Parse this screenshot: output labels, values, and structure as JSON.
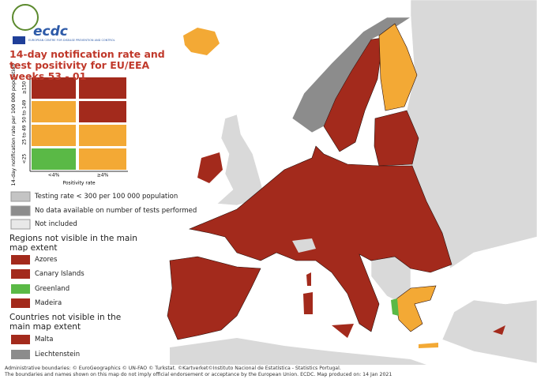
{
  "logo": {
    "name": "ecdc",
    "subtitle": "EUROPEAN CENTRE FOR DISEASE PREVENTION AND CONTROL"
  },
  "title": "14-day notification rate and test positivity for EU/EEA weeks 53 - 01",
  "matrix": {
    "y_label": "14-day notification rate per 100 000 population",
    "row_labels": [
      "≥150",
      "50 to 149",
      "25 to 49",
      "<25"
    ],
    "col_labels": [
      "<4%",
      "≥4%"
    ],
    "x_label": "Positivity rate"
  },
  "legend": [
    "Testing rate < 300 per 100 000 population",
    "No data available on number of tests performed",
    "Not included"
  ],
  "regions": {
    "title": "Regions not visible in the main map extent",
    "items": [
      "Azores",
      "Canary Islands",
      "Greenland",
      "Madeira"
    ]
  },
  "countries": {
    "title": "Countries not visible in the main map extent",
    "items": [
      "Malta",
      "Liechtenstein"
    ]
  },
  "footer": [
    "Administrative boundaries: © EuroGeographics © UN-FAO © Turkstat. ©Kartverket©Instituto Nacional de Estatística - Statistics Portugal.",
    "The boundaries and names shown on this map do not imply official endorsement or acceptance by the European Union. ECDC. Map produced on: 14 Jan 2021"
  ]
}
